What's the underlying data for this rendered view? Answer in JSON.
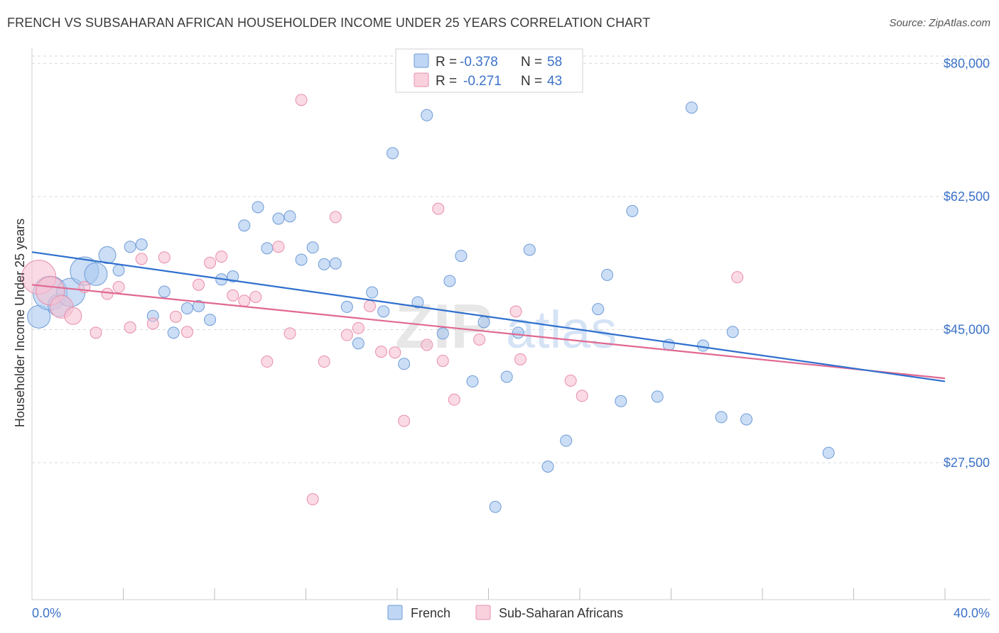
{
  "header": {
    "title": "FRENCH VS SUBSAHARAN AFRICAN HOUSEHOLDER INCOME UNDER 25 YEARS CORRELATION CHART",
    "source": "Source: ZipAtlas.com"
  },
  "watermark": {
    "zip": "ZIP",
    "atlas": "atlas"
  },
  "colors": {
    "french_fill": "#a9c8f0",
    "french_stroke": "#6f9bd6",
    "french_line": "#2f6fce",
    "sub_fill": "#f6c1d2",
    "sub_stroke": "#e88eab",
    "sub_line": "#e06890",
    "axis_value": "#3c72c8",
    "grid": "#d9d9d9"
  },
  "legend_top": {
    "rows": [
      {
        "r_label": "R =",
        "r_value": "-0.378",
        "n_label": "N =",
        "n_value": "58"
      },
      {
        "r_label": "R =",
        "r_value": "-0.271",
        "n_label": "N =",
        "n_value": "43"
      }
    ]
  },
  "legend_bottom": {
    "items": [
      {
        "label": "French"
      },
      {
        "label": "Sub-Saharan Africans"
      }
    ]
  },
  "chart_data": {
    "type": "scatter",
    "title": "FRENCH VS SUBSAHARAN AFRICAN HOUSEHOLDER INCOME UNDER 25 YEARS CORRELATION CHART",
    "xlabel": "",
    "ylabel": "Householder Income Under 25 years",
    "xlim": [
      0,
      40
    ],
    "ylim": [
      9500,
      82000
    ],
    "x_tick_labels": [
      "0.0%",
      "40.0%"
    ],
    "y_ticks": [
      27500,
      45000,
      62500,
      80000
    ],
    "y_tick_labels": [
      "$27,500",
      "$45,000",
      "$62,500",
      "$80,000"
    ],
    "grid": "horizontal dashed",
    "legend_placement": "top-center and bottom",
    "series": [
      {
        "name": "French",
        "R": -0.378,
        "N": 58,
        "trend": {
          "x": [
            0,
            40
          ],
          "y": [
            55200,
            38200
          ]
        },
        "points": [
          [
            0.3,
            46700,
            2
          ],
          [
            0.8,
            49800,
            3
          ],
          [
            1.2,
            48200,
            2
          ],
          [
            1.7,
            49900,
            2.5
          ],
          [
            2.3,
            52700,
            2.5
          ],
          [
            2.8,
            52300,
            2
          ],
          [
            3.3,
            54800,
            1.5
          ],
          [
            3.8,
            52800,
            1
          ],
          [
            4.3,
            55900,
            1
          ],
          [
            4.8,
            56200,
            1
          ],
          [
            5.3,
            46800,
            1
          ],
          [
            5.8,
            50000,
            1
          ],
          [
            6.2,
            44600,
            1
          ],
          [
            6.8,
            47800,
            1
          ],
          [
            7.3,
            48100,
            1
          ],
          [
            7.8,
            46300,
            1
          ],
          [
            8.3,
            51600,
            1
          ],
          [
            8.8,
            52000,
            1
          ],
          [
            9.3,
            58700,
            1
          ],
          [
            9.9,
            61100,
            1
          ],
          [
            10.3,
            55700,
            1
          ],
          [
            10.8,
            59600,
            1
          ],
          [
            11.3,
            59900,
            1
          ],
          [
            11.8,
            54200,
            1
          ],
          [
            12.3,
            55800,
            1
          ],
          [
            12.8,
            53600,
            1
          ],
          [
            13.3,
            53700,
            1
          ],
          [
            13.8,
            48000,
            1
          ],
          [
            14.3,
            43200,
            1
          ],
          [
            14.9,
            49900,
            1
          ],
          [
            15.4,
            47400,
            1
          ],
          [
            15.8,
            68200,
            1
          ],
          [
            16.3,
            40500,
            1
          ],
          [
            16.9,
            48600,
            1
          ],
          [
            17.3,
            73200,
            1
          ],
          [
            18.0,
            44500,
            1
          ],
          [
            18.3,
            51400,
            1
          ],
          [
            18.8,
            54700,
            1
          ],
          [
            19.3,
            38200,
            1
          ],
          [
            19.8,
            46000,
            1
          ],
          [
            20.3,
            21700,
            1
          ],
          [
            20.8,
            38800,
            1
          ],
          [
            21.3,
            44600,
            1
          ],
          [
            21.8,
            55500,
            1
          ],
          [
            22.6,
            27000,
            1
          ],
          [
            23.4,
            30400,
            1
          ],
          [
            24.8,
            47700,
            1
          ],
          [
            25.2,
            52200,
            1
          ],
          [
            25.8,
            35600,
            1
          ],
          [
            26.3,
            60600,
            1
          ],
          [
            27.4,
            36200,
            1
          ],
          [
            27.9,
            43000,
            1
          ],
          [
            28.9,
            74200,
            1
          ],
          [
            29.4,
            42900,
            1
          ],
          [
            30.2,
            33500,
            1
          ],
          [
            30.7,
            44700,
            1
          ],
          [
            31.3,
            33200,
            1
          ],
          [
            34.9,
            28800,
            1
          ]
        ]
      },
      {
        "name": "Sub-Saharan Africans",
        "R": -0.271,
        "N": 43,
        "trend": {
          "x": [
            0,
            40
          ],
          "y": [
            50900,
            38600
          ]
        },
        "points": [
          [
            0.3,
            51900,
            3
          ],
          [
            0.8,
            50100,
            2.5
          ],
          [
            1.3,
            48000,
            2
          ],
          [
            1.8,
            46800,
            1.5
          ],
          [
            2.3,
            50600,
            1
          ],
          [
            2.8,
            44600,
            1
          ],
          [
            3.3,
            49700,
            1
          ],
          [
            3.8,
            50600,
            1
          ],
          [
            4.3,
            45300,
            1
          ],
          [
            4.8,
            54300,
            1
          ],
          [
            5.3,
            45800,
            1
          ],
          [
            5.8,
            54500,
            1
          ],
          [
            6.3,
            46700,
            1
          ],
          [
            6.8,
            44700,
            1
          ],
          [
            7.3,
            50900,
            1
          ],
          [
            7.8,
            53800,
            1
          ],
          [
            8.3,
            54600,
            1
          ],
          [
            8.8,
            49500,
            1
          ],
          [
            9.3,
            48800,
            1
          ],
          [
            9.8,
            49300,
            1
          ],
          [
            10.3,
            40800,
            1
          ],
          [
            10.8,
            55900,
            1
          ],
          [
            11.3,
            44500,
            1
          ],
          [
            11.8,
            75200,
            1
          ],
          [
            12.3,
            22700,
            1
          ],
          [
            12.8,
            40800,
            1
          ],
          [
            13.3,
            59800,
            1
          ],
          [
            13.8,
            44300,
            1
          ],
          [
            14.3,
            45200,
            1
          ],
          [
            14.8,
            48100,
            1
          ],
          [
            15.3,
            42100,
            1
          ],
          [
            15.9,
            42000,
            1
          ],
          [
            16.3,
            33000,
            1
          ],
          [
            17.3,
            43000,
            1
          ],
          [
            17.8,
            60900,
            1
          ],
          [
            18.0,
            40900,
            1
          ],
          [
            18.5,
            35800,
            1
          ],
          [
            19.6,
            43700,
            1
          ],
          [
            21.2,
            47400,
            1
          ],
          [
            21.4,
            41100,
            1
          ],
          [
            23.6,
            38300,
            1
          ],
          [
            24.1,
            36300,
            1
          ],
          [
            30.9,
            51900,
            1
          ]
        ]
      }
    ]
  }
}
